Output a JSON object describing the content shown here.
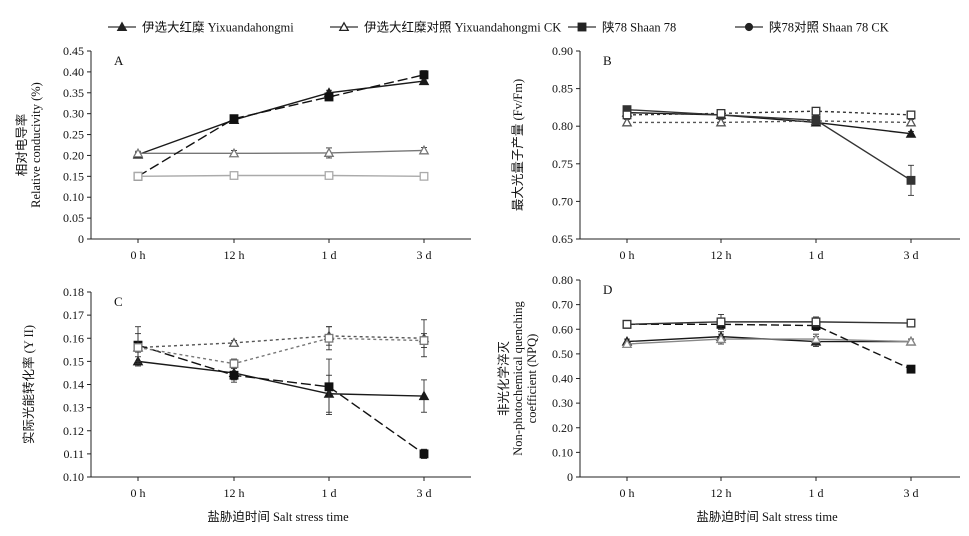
{
  "legend": [
    {
      "label": "伊选大红糜 Yixuandahongmi",
      "marker": "triangle",
      "dash": "",
      "color": "#222222"
    },
    {
      "label": "伊选大红糜对照 Yixuandahongmi CK",
      "marker": "triangle-open",
      "dash": "",
      "color": "#888888"
    },
    {
      "label": "陕78 Shaan 78",
      "marker": "square",
      "dash": "",
      "color": "#111111"
    },
    {
      "label": "陕78对照 Shaan 78 CK",
      "marker": "circle",
      "dash": "",
      "color": "#666666"
    }
  ],
  "x_title": "盐胁迫时间 Salt stress time",
  "chart_data": [
    {
      "panel": "A",
      "type": "line",
      "categories": [
        "0 h",
        "12 h",
        "1 d",
        "3 d"
      ],
      "ylabel": [
        "相对电导率",
        "Relative conducivity (%)"
      ],
      "ylim": [
        0,
        0.45
      ],
      "yticks": [
        "0",
        "0.05",
        "0.10",
        "0.15",
        "0.20",
        "0.25",
        "0.30",
        "0.35",
        "0.40",
        "0.45"
      ],
      "series": [
        {
          "marker": "triangle",
          "dash": "",
          "color": "#1a1a1a",
          "values": [
            0.202,
            0.285,
            0.35,
            0.378
          ],
          "err": [
            0.005,
            0.006,
            0.006,
            0.007
          ]
        },
        {
          "marker": "triangle-open",
          "dash": "",
          "color": "#777777",
          "values": [
            0.205,
            0.205,
            0.206,
            0.212
          ],
          "err": [
            0.005,
            0.007,
            0.012,
            0.007
          ]
        },
        {
          "marker": "square",
          "dash": "10 4",
          "color": "#111111",
          "values": [
            0.15,
            0.288,
            0.34,
            0.393
          ],
          "err": [
            0.005,
            0.006,
            0.006,
            0.01
          ]
        },
        {
          "marker": "square-open",
          "dash": "",
          "color": "#aaaaaa",
          "values": [
            0.15,
            0.152,
            0.152,
            0.15
          ],
          "err": [
            0.004,
            0.004,
            0.004,
            0.005
          ]
        }
      ]
    },
    {
      "panel": "B",
      "type": "line",
      "categories": [
        "0 h",
        "12 h",
        "1 d",
        "3 d"
      ],
      "ylabel": [
        "最大光量子产量 (Fv/Fm)"
      ],
      "ylim": [
        0.65,
        0.9
      ],
      "yticks": [
        "0.65",
        "0.70",
        "0.75",
        "0.80",
        "0.85",
        "0.90"
      ],
      "series": [
        {
          "marker": "triangle",
          "dash": "",
          "color": "#1a1a1a",
          "values": [
            0.818,
            0.815,
            0.805,
            0.79
          ],
          "err": [
            0.004,
            0.004,
            0.004,
            0.003
          ]
        },
        {
          "marker": "triangle-open",
          "dash": "3 3",
          "color": "#555555",
          "values": [
            0.805,
            0.805,
            0.807,
            0.805
          ],
          "err": [
            0.004,
            0.004,
            0.004,
            0.004
          ]
        },
        {
          "marker": "square",
          "dash": "",
          "color": "#333333",
          "values": [
            0.822,
            0.815,
            0.808,
            0.728
          ],
          "err": [
            0.004,
            0.004,
            0.006,
            0.02
          ]
        },
        {
          "marker": "square-open",
          "dash": "3 3",
          "color": "#333333",
          "values": [
            0.815,
            0.817,
            0.82,
            0.815
          ],
          "err": [
            0.004,
            0.004,
            0.004,
            0.005
          ]
        }
      ]
    },
    {
      "panel": "C",
      "type": "line",
      "categories": [
        "0 h",
        "12 h",
        "1 d",
        "3 d"
      ],
      "ylabel": [
        "实际光能转化率 (Y II)"
      ],
      "ylim": [
        0.1,
        0.18
      ],
      "yticks": [
        "0.10",
        "0.11",
        "0.12",
        "0.13",
        "0.14",
        "0.15",
        "0.16",
        "0.17",
        "0.18"
      ],
      "series": [
        {
          "marker": "triangle",
          "dash": "",
          "color": "#1a1a1a",
          "values": [
            0.15,
            0.145,
            0.136,
            0.135
          ],
          "err": [
            0.002,
            0.003,
            0.008,
            0.007
          ]
        },
        {
          "marker": "triangle-open",
          "dash": "3 3",
          "color": "#555555",
          "values": [
            0.156,
            0.158,
            0.161,
            0.16
          ],
          "err": [
            0.002,
            0.001,
            0.004,
            0.008
          ]
        },
        {
          "marker": "square",
          "dash": "10 4",
          "color": "#111111",
          "values": [
            0.157,
            0.144,
            0.139,
            0.11
          ],
          "err": [
            0.008,
            0.003,
            0.012,
            0.002
          ]
        },
        {
          "marker": "square-open",
          "dash": "3 3",
          "color": "#777777",
          "values": [
            0.156,
            0.149,
            0.16,
            0.159
          ],
          "err": [
            0.006,
            0.002,
            0.005,
            0.003
          ]
        }
      ]
    },
    {
      "panel": "D",
      "type": "line",
      "categories": [
        "0 h",
        "12 h",
        "1 d",
        "3 d"
      ],
      "ylabel": [
        "非光化学淬灭",
        "Non-photochemical quenching",
        "coefficient (NPQ)"
      ],
      "ylim": [
        0,
        0.8
      ],
      "yticks": [
        "0",
        "0.10",
        "0.20",
        "0.30",
        "0.40",
        "0.50",
        "0.60",
        "0.70",
        "0.80"
      ],
      "series": [
        {
          "marker": "triangle",
          "dash": "",
          "color": "#1a1a1a",
          "values": [
            0.55,
            0.57,
            0.55,
            0.55
          ],
          "err": [
            0.01,
            0.02,
            0.02,
            0.01
          ]
        },
        {
          "marker": "triangle-open",
          "dash": "",
          "color": "#888888",
          "values": [
            0.54,
            0.56,
            0.56,
            0.55
          ],
          "err": [
            0.01,
            0.02,
            0.02,
            0.01
          ]
        },
        {
          "marker": "square",
          "dash": "8 4",
          "color": "#111111",
          "values": [
            0.62,
            0.62,
            0.615,
            0.438
          ],
          "err": [
            0.01,
            0.02,
            0.02,
            0.008
          ]
        },
        {
          "marker": "square-open",
          "dash": "",
          "color": "#333333",
          "values": [
            0.62,
            0.63,
            0.63,
            0.625
          ],
          "err": [
            0.01,
            0.03,
            0.02,
            0.008
          ]
        }
      ]
    }
  ]
}
